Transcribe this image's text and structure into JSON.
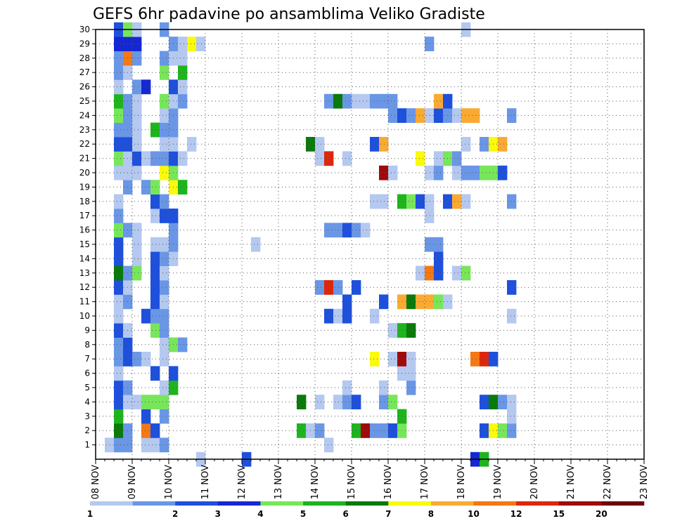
{
  "chart_data": {
    "type": "heatmap",
    "title": "GEFS 6hr padavine po ansamblima Veliko Gradiste",
    "x": {
      "ticks": [
        "08 NOV",
        "09 NOV",
        "10 NOV",
        "11 NOV",
        "12 NOV",
        "13 NOV",
        "14 NOV",
        "15 NOV",
        "16 NOV",
        "17 NOV",
        "18 NOV",
        "19 NOV",
        "20 NOV",
        "21 NOV",
        "22 NOV",
        "23 NOV"
      ],
      "steps_per_day": 4
    },
    "y": {
      "ticks": [
        "1",
        "2",
        "3",
        "4",
        "5",
        "6",
        "7",
        "8",
        "9",
        "10",
        "11",
        "12",
        "13",
        "14",
        "15",
        "16",
        "17",
        "18",
        "19",
        "20",
        "21",
        "22",
        "23",
        "24",
        "25",
        "26",
        "27",
        "28",
        "29",
        "30"
      ]
    },
    "grid": true,
    "colorbar": {
      "levels": [
        "1",
        "2",
        "3",
        "4",
        "5",
        "6",
        "7",
        "8",
        "10",
        "12",
        "15",
        "20"
      ],
      "colors": [
        "#b4c8f0",
        "#6a96e6",
        "#1e50dc",
        "#1428d2",
        "#78e65a",
        "#1eb41e",
        "#0a7a0a",
        "#fafa0a",
        "#faaa32",
        "#f57814",
        "#dc280a",
        "#a00a0a",
        "#6e0505"
      ]
    },
    "cells": [
      [
        1,
        1,
        0
      ],
      [
        1,
        2,
        1
      ],
      [
        1,
        3,
        1
      ],
      [
        1,
        5,
        0
      ],
      [
        1,
        6,
        0
      ],
      [
        1,
        7,
        1
      ],
      [
        1,
        25,
        0
      ],
      [
        2,
        2,
        6
      ],
      [
        2,
        3,
        1
      ],
      [
        2,
        5,
        9
      ],
      [
        2,
        6,
        2
      ],
      [
        2,
        22,
        5
      ],
      [
        2,
        23,
        0
      ],
      [
        2,
        24,
        1
      ],
      [
        2,
        28,
        5
      ],
      [
        2,
        29,
        11
      ],
      [
        2,
        30,
        1
      ],
      [
        2,
        31,
        1
      ],
      [
        2,
        32,
        2
      ],
      [
        2,
        33,
        4
      ],
      [
        2,
        42,
        2
      ],
      [
        2,
        43,
        7
      ],
      [
        2,
        44,
        4
      ],
      [
        2,
        45,
        1
      ],
      [
        3,
        2,
        5
      ],
      [
        3,
        5,
        2
      ],
      [
        3,
        7,
        1
      ],
      [
        3,
        33,
        5
      ],
      [
        3,
        45,
        0
      ],
      [
        4,
        2,
        2
      ],
      [
        4,
        3,
        0
      ],
      [
        4,
        4,
        0
      ],
      [
        4,
        5,
        4
      ],
      [
        4,
        6,
        4
      ],
      [
        4,
        7,
        4
      ],
      [
        4,
        22,
        6
      ],
      [
        4,
        24,
        0
      ],
      [
        4,
        26,
        0
      ],
      [
        4,
        27,
        1
      ],
      [
        4,
        28,
        2
      ],
      [
        4,
        31,
        1
      ],
      [
        4,
        32,
        4
      ],
      [
        4,
        42,
        2
      ],
      [
        4,
        43,
        6
      ],
      [
        4,
        44,
        1
      ],
      [
        4,
        45,
        0
      ],
      [
        5,
        2,
        2
      ],
      [
        5,
        3,
        1
      ],
      [
        5,
        7,
        0
      ],
      [
        5,
        8,
        5
      ],
      [
        5,
        27,
        0
      ],
      [
        5,
        31,
        0
      ],
      [
        5,
        34,
        1
      ],
      [
        6,
        2,
        0
      ],
      [
        6,
        6,
        2
      ],
      [
        6,
        8,
        2
      ],
      [
        6,
        33,
        0
      ],
      [
        6,
        34,
        0
      ],
      [
        7,
        2,
        1
      ],
      [
        7,
        3,
        2
      ],
      [
        7,
        4,
        1
      ],
      [
        7,
        5,
        0
      ],
      [
        7,
        7,
        0
      ],
      [
        7,
        30,
        7
      ],
      [
        7,
        32,
        0
      ],
      [
        7,
        33,
        11
      ],
      [
        7,
        34,
        0
      ],
      [
        7,
        41,
        9
      ],
      [
        7,
        42,
        10
      ],
      [
        7,
        43,
        2
      ],
      [
        8,
        2,
        1
      ],
      [
        8,
        3,
        2
      ],
      [
        8,
        7,
        0
      ],
      [
        8,
        8,
        4
      ],
      [
        8,
        9,
        1
      ],
      [
        9,
        2,
        2
      ],
      [
        9,
        3,
        0
      ],
      [
        9,
        6,
        4
      ],
      [
        9,
        7,
        1
      ],
      [
        9,
        32,
        0
      ],
      [
        9,
        33,
        5
      ],
      [
        9,
        34,
        6
      ],
      [
        10,
        2,
        0
      ],
      [
        10,
        5,
        2
      ],
      [
        10,
        6,
        1
      ],
      [
        10,
        7,
        1
      ],
      [
        10,
        25,
        2
      ],
      [
        10,
        26,
        0
      ],
      [
        10,
        27,
        2
      ],
      [
        10,
        30,
        0
      ],
      [
        10,
        45,
        0
      ],
      [
        11,
        2,
        0
      ],
      [
        11,
        3,
        1
      ],
      [
        11,
        6,
        2
      ],
      [
        11,
        7,
        0
      ],
      [
        11,
        27,
        2
      ],
      [
        11,
        31,
        2
      ],
      [
        11,
        33,
        8
      ],
      [
        11,
        34,
        6
      ],
      [
        11,
        35,
        8
      ],
      [
        11,
        36,
        8
      ],
      [
        11,
        37,
        4
      ],
      [
        11,
        38,
        0
      ],
      [
        12,
        2,
        2
      ],
      [
        12,
        3,
        0
      ],
      [
        12,
        6,
        2
      ],
      [
        12,
        7,
        1
      ],
      [
        12,
        24,
        1
      ],
      [
        12,
        25,
        10
      ],
      [
        12,
        26,
        1
      ],
      [
        12,
        28,
        2
      ],
      [
        12,
        45,
        2
      ],
      [
        13,
        2,
        6
      ],
      [
        13,
        3,
        1
      ],
      [
        13,
        4,
        4
      ],
      [
        13,
        6,
        2
      ],
      [
        13,
        7,
        0
      ],
      [
        13,
        35,
        0
      ],
      [
        13,
        36,
        9
      ],
      [
        13,
        37,
        2
      ],
      [
        13,
        39,
        0
      ],
      [
        13,
        40,
        4
      ],
      [
        14,
        2,
        2
      ],
      [
        14,
        4,
        0
      ],
      [
        14,
        6,
        2
      ],
      [
        14,
        7,
        1
      ],
      [
        14,
        8,
        0
      ],
      [
        14,
        37,
        2
      ],
      [
        15,
        2,
        2
      ],
      [
        15,
        4,
        0
      ],
      [
        15,
        6,
        0
      ],
      [
        15,
        7,
        0
      ],
      [
        15,
        8,
        1
      ],
      [
        15,
        17,
        0
      ],
      [
        15,
        36,
        1
      ],
      [
        15,
        37,
        1
      ],
      [
        16,
        2,
        4
      ],
      [
        16,
        3,
        1
      ],
      [
        16,
        4,
        0
      ],
      [
        16,
        8,
        1
      ],
      [
        16,
        25,
        1
      ],
      [
        16,
        26,
        1
      ],
      [
        16,
        27,
        2
      ],
      [
        16,
        28,
        1
      ],
      [
        16,
        29,
        0
      ],
      [
        17,
        2,
        1
      ],
      [
        17,
        6,
        0
      ],
      [
        17,
        7,
        2
      ],
      [
        17,
        8,
        2
      ],
      [
        17,
        36,
        0
      ],
      [
        18,
        2,
        0
      ],
      [
        18,
        6,
        2
      ],
      [
        18,
        7,
        1
      ],
      [
        18,
        30,
        0
      ],
      [
        18,
        31,
        0
      ],
      [
        18,
        33,
        5
      ],
      [
        18,
        34,
        4
      ],
      [
        18,
        35,
        2
      ],
      [
        18,
        36,
        0
      ],
      [
        18,
        38,
        2
      ],
      [
        18,
        39,
        8
      ],
      [
        18,
        40,
        0
      ],
      [
        18,
        45,
        1
      ],
      [
        19,
        3,
        1
      ],
      [
        19,
        5,
        1
      ],
      [
        19,
        6,
        4
      ],
      [
        19,
        8,
        7
      ],
      [
        19,
        9,
        5
      ],
      [
        20,
        2,
        0
      ],
      [
        20,
        3,
        0
      ],
      [
        20,
        4,
        0
      ],
      [
        20,
        7,
        7
      ],
      [
        20,
        8,
        4
      ],
      [
        20,
        31,
        11
      ],
      [
        20,
        32,
        0
      ],
      [
        20,
        36,
        0
      ],
      [
        20,
        37,
        1
      ],
      [
        20,
        39,
        0
      ],
      [
        20,
        40,
        1
      ],
      [
        20,
        41,
        1
      ],
      [
        20,
        42,
        4
      ],
      [
        20,
        43,
        4
      ],
      [
        20,
        44,
        2
      ],
      [
        21,
        2,
        4
      ],
      [
        21,
        3,
        0
      ],
      [
        21,
        4,
        2
      ],
      [
        21,
        5,
        0
      ],
      [
        21,
        6,
        1
      ],
      [
        21,
        7,
        1
      ],
      [
        21,
        8,
        2
      ],
      [
        21,
        9,
        0
      ],
      [
        21,
        24,
        0
      ],
      [
        21,
        25,
        10
      ],
      [
        21,
        27,
        0
      ],
      [
        21,
        35,
        7
      ],
      [
        21,
        37,
        0
      ],
      [
        21,
        38,
        4
      ],
      [
        21,
        39,
        1
      ],
      [
        22,
        2,
        2
      ],
      [
        22,
        3,
        2
      ],
      [
        22,
        4,
        0
      ],
      [
        22,
        7,
        0
      ],
      [
        22,
        8,
        0
      ],
      [
        22,
        10,
        0
      ],
      [
        22,
        23,
        6
      ],
      [
        22,
        24,
        0
      ],
      [
        22,
        30,
        2
      ],
      [
        22,
        31,
        8
      ],
      [
        22,
        40,
        0
      ],
      [
        22,
        42,
        1
      ],
      [
        22,
        43,
        7
      ],
      [
        22,
        44,
        8
      ],
      [
        23,
        2,
        1
      ],
      [
        23,
        3,
        1
      ],
      [
        23,
        4,
        0
      ],
      [
        23,
        6,
        5
      ],
      [
        23,
        7,
        1
      ],
      [
        23,
        8,
        1
      ],
      [
        24,
        2,
        4
      ],
      [
        24,
        3,
        1
      ],
      [
        24,
        4,
        0
      ],
      [
        24,
        7,
        0
      ],
      [
        24,
        8,
        1
      ],
      [
        24,
        32,
        1
      ],
      [
        24,
        33,
        2
      ],
      [
        24,
        34,
        1
      ],
      [
        24,
        35,
        8
      ],
      [
        24,
        36,
        0
      ],
      [
        24,
        37,
        2
      ],
      [
        24,
        38,
        1
      ],
      [
        24,
        39,
        0
      ],
      [
        24,
        40,
        8
      ],
      [
        24,
        41,
        8
      ],
      [
        24,
        45,
        1
      ],
      [
        25,
        2,
        5
      ],
      [
        25,
        3,
        1
      ],
      [
        25,
        4,
        0
      ],
      [
        25,
        7,
        4
      ],
      [
        25,
        8,
        0
      ],
      [
        25,
        9,
        1
      ],
      [
        25,
        25,
        1
      ],
      [
        25,
        26,
        6
      ],
      [
        25,
        27,
        1
      ],
      [
        25,
        28,
        0
      ],
      [
        25,
        29,
        0
      ],
      [
        25,
        30,
        1
      ],
      [
        25,
        31,
        1
      ],
      [
        25,
        32,
        1
      ],
      [
        25,
        37,
        8
      ],
      [
        25,
        38,
        2
      ],
      [
        26,
        2,
        0
      ],
      [
        26,
        4,
        1
      ],
      [
        26,
        5,
        3
      ],
      [
        26,
        8,
        2
      ],
      [
        26,
        9,
        0
      ],
      [
        27,
        2,
        1
      ],
      [
        27,
        3,
        0
      ],
      [
        27,
        7,
        4
      ],
      [
        27,
        9,
        5
      ],
      [
        28,
        2,
        1
      ],
      [
        28,
        3,
        9
      ],
      [
        28,
        4,
        1
      ],
      [
        28,
        7,
        1
      ],
      [
        28,
        8,
        0
      ],
      [
        28,
        9,
        0
      ],
      [
        29,
        2,
        3
      ],
      [
        29,
        3,
        3
      ],
      [
        29,
        4,
        3
      ],
      [
        29,
        8,
        1
      ],
      [
        29,
        9,
        0
      ],
      [
        29,
        10,
        7
      ],
      [
        29,
        11,
        0
      ],
      [
        29,
        36,
        1
      ],
      [
        30,
        2,
        2
      ],
      [
        30,
        3,
        4
      ],
      [
        30,
        4,
        0
      ],
      [
        30,
        7,
        1
      ],
      [
        30,
        40,
        0
      ],
      [
        0,
        11,
        0
      ],
      [
        0,
        16,
        2
      ],
      [
        0,
        41,
        3
      ],
      [
        0,
        42,
        5
      ]
    ]
  }
}
